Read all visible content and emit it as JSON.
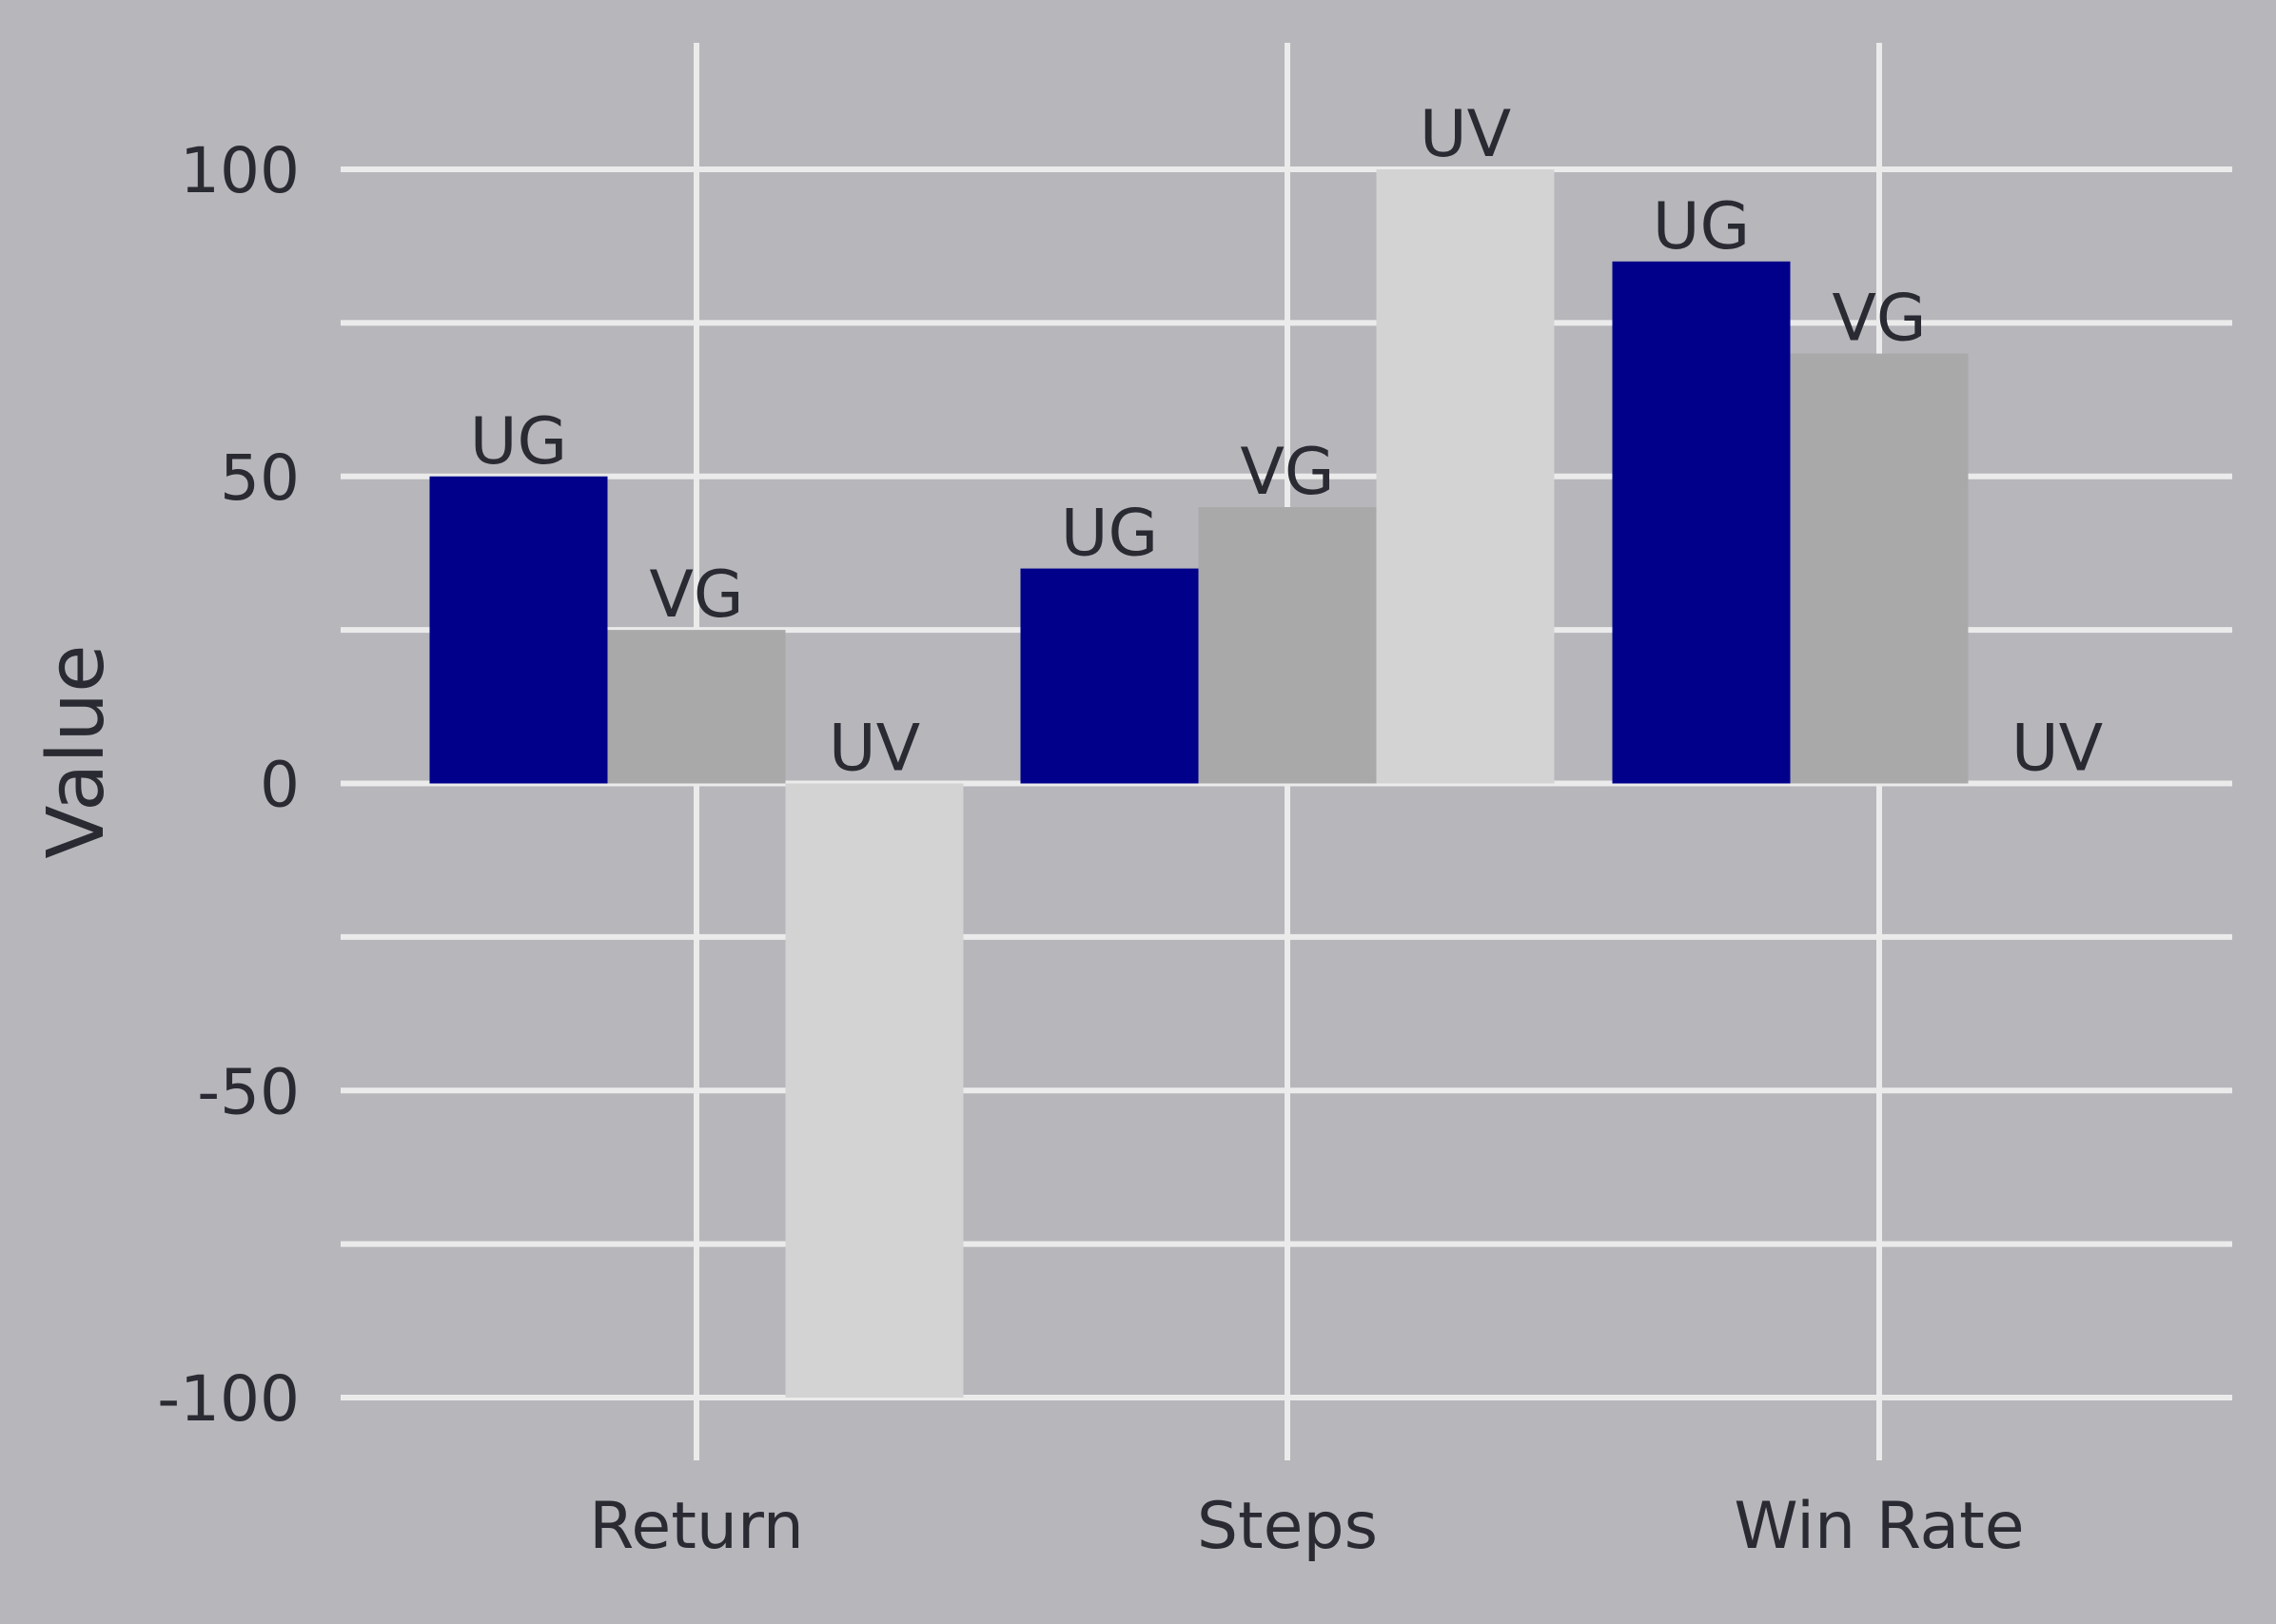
{
  "chart_data": {
    "type": "bar",
    "title": "",
    "xlabel": "",
    "ylabel": "Value",
    "categories": [
      "Return",
      "Steps",
      "Win Rate"
    ],
    "series": [
      {
        "name": "UG",
        "color": "#00008b",
        "values": [
          50,
          35,
          85
        ]
      },
      {
        "name": "VG",
        "color": "#a9a9a9",
        "values": [
          25,
          45,
          70
        ]
      },
      {
        "name": "UV",
        "color": "#d3d3d3",
        "values": [
          -100,
          100,
          0
        ]
      }
    ],
    "ylim": [
      -105,
      120
    ],
    "yticks": [
      -100,
      -50,
      0,
      50,
      100
    ],
    "ytick_labels": [
      "-100",
      "-50",
      "0",
      "50",
      "100"
    ],
    "minor_gridlines": [
      -75,
      -25,
      25,
      75
    ],
    "grid": true,
    "legend": "none",
    "bar_labels": "series name above each bar",
    "background_color": "#b6b6bb",
    "grid_color": "#ebebeb"
  }
}
